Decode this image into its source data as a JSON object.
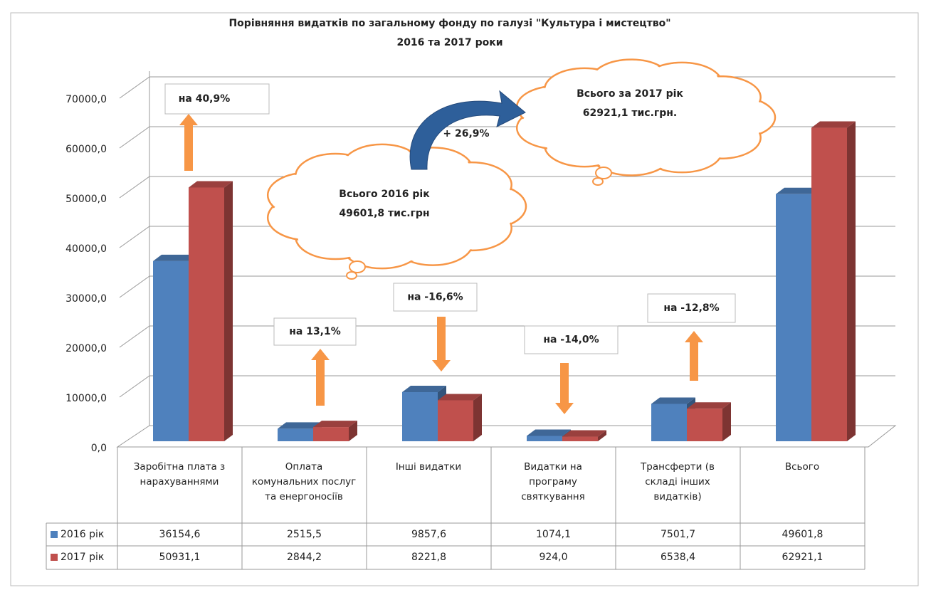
{
  "chart_data": {
    "type": "bar",
    "title": "Порівняння видатків по загальному фонду по галузі \"Культура і мистецтво\"",
    "subtitle": "2016 та 2017 роки",
    "categories": [
      "Заробітна плата з нарахуваннями",
      "Оплата комунальних послуг та енергоносіїв",
      "Інші видатки",
      "Видатки на програму святкування",
      "Трансферти (в складі інших видатків)",
      "Всього"
    ],
    "series": [
      {
        "name": "2016 рік",
        "color": "#4f81bd",
        "values": [
          36154.6,
          2515.5,
          9857.6,
          1074.1,
          7501.7,
          49601.8
        ],
        "value_labels": [
          "36154,6",
          "2515,5",
          "9857,6",
          "1074,1",
          "7501,7",
          "49601,8"
        ]
      },
      {
        "name": "2017 рік",
        "color": "#c0504d",
        "values": [
          50931.1,
          2844.2,
          8221.8,
          924.0,
          6538.4,
          62921.1
        ],
        "value_labels": [
          "50931,1",
          "2844,2",
          "8221,8",
          "924,0",
          "6538,4",
          "62921,1"
        ]
      }
    ],
    "ylim": [
      0,
      70000
    ],
    "yticks": [
      {
        "value": 0,
        "label": "0,0"
      },
      {
        "value": 10000,
        "label": "10000,0"
      },
      {
        "value": 20000,
        "label": "20000,0"
      },
      {
        "value": 30000,
        "label": "30000,0"
      },
      {
        "value": 40000,
        "label": "40000,0"
      },
      {
        "value": 50000,
        "label": "50000,0"
      },
      {
        "value": 60000,
        "label": "60000,0"
      },
      {
        "value": 70000,
        "label": "70000,0"
      }
    ],
    "grid": true,
    "annotations": [
      {
        "text": "на 40,9%",
        "direction": "up"
      },
      {
        "text": "на 13,1%",
        "direction": "up"
      },
      {
        "text": "на -16,6%",
        "direction": "down"
      },
      {
        "text": "на -14,0%",
        "direction": "down"
      },
      {
        "text": "на -12,8%",
        "direction": "up"
      }
    ],
    "totals": {
      "change": "+ 26,9%",
      "cloud_2016": [
        "Всього 2016 рік",
        "49601,8 тис.грн"
      ],
      "cloud_2017": [
        "Всього за 2017 рік",
        "62921,1 тис.грн."
      ]
    }
  }
}
